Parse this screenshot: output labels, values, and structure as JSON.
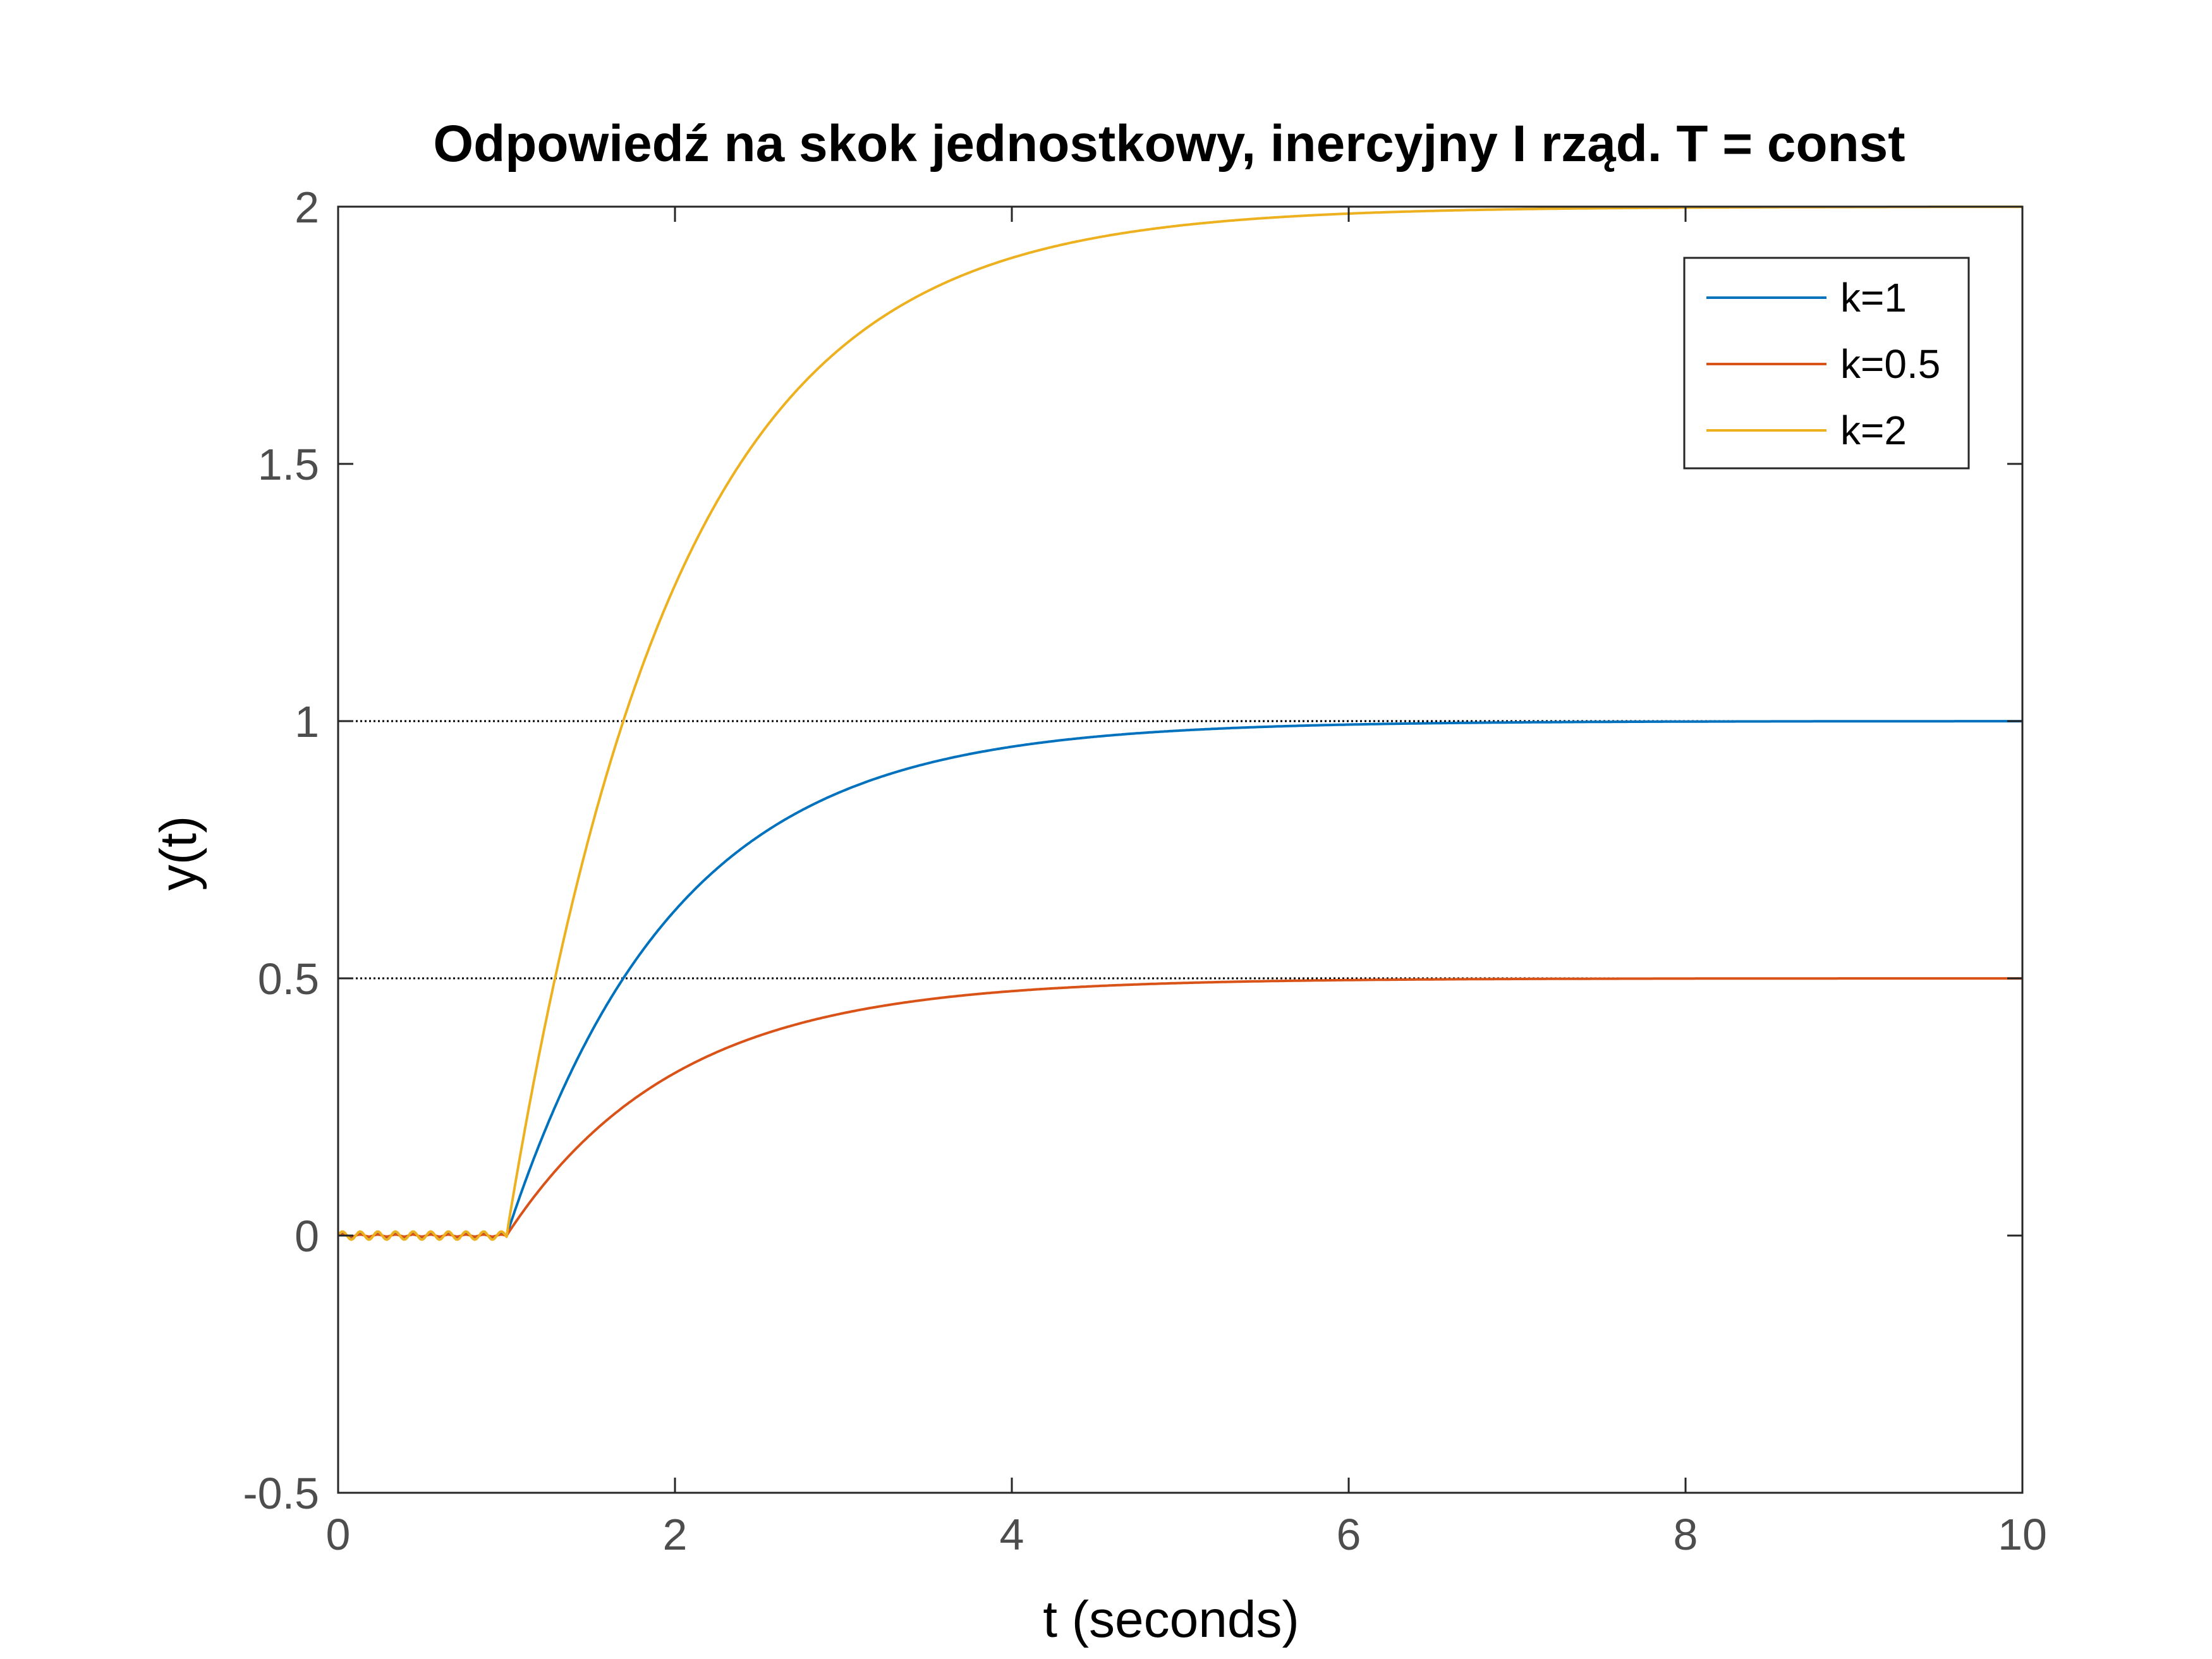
{
  "chart_data": {
    "type": "line",
    "title": "Odpowiedź na skok jednostkowy, inercyjny I rząd. T = const",
    "xlabel": "t (seconds)",
    "ylabel": "y(t)",
    "xlim": [
      0,
      10
    ],
    "ylim": [
      -0.5,
      2
    ],
    "xticks": [
      0,
      2,
      4,
      6,
      8,
      10
    ],
    "yticks": [
      -0.5,
      0,
      0.5,
      1,
      1.5,
      2
    ],
    "xtick_labels": [
      "0",
      "2",
      "4",
      "6",
      "8",
      "10"
    ],
    "ytick_labels": [
      "-0.5",
      "0",
      "0.5",
      "1",
      "1.5",
      "2"
    ],
    "reference_lines": [
      0.5,
      1,
      2
    ],
    "reference_line_style": "dotted black",
    "legend_position": "top-right",
    "step_time": 1,
    "time_constant": 1,
    "series": [
      {
        "name": "k=1",
        "gain": 1,
        "color": "#0072BD"
      },
      {
        "name": "k=0.5",
        "gain": 0.5,
        "color": "#D95319"
      },
      {
        "name": "k=2",
        "gain": 2,
        "color": "#EDB120"
      }
    ]
  }
}
